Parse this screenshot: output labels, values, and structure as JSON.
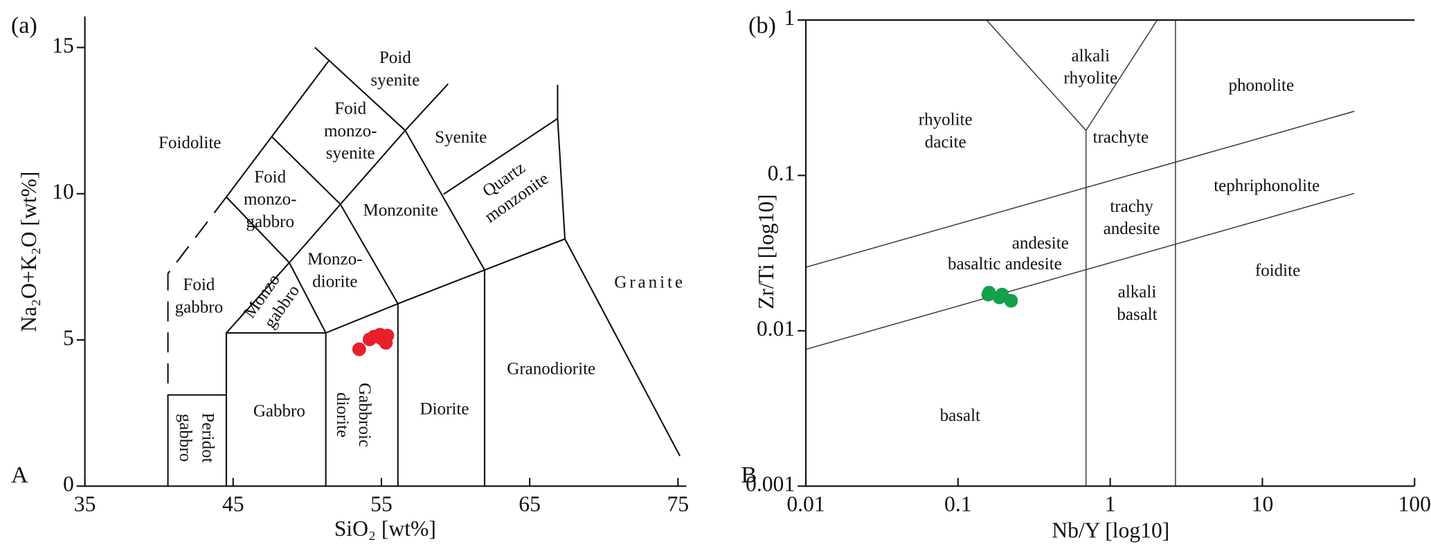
{
  "chart_data": [
    {
      "type": "scatter",
      "panel_label": "(a)",
      "corner_label": "A",
      "x_label": "SiO₂ [wt%]",
      "y_label": "Na₂O+K₂O [wt%]",
      "xlim": [
        35,
        75.5
      ],
      "ylim": [
        0,
        16
      ],
      "xticks": [
        35,
        45,
        55,
        65,
        75
      ],
      "yticks": [
        0,
        5,
        10,
        15
      ],
      "series": [
        {
          "color": "#e8202a",
          "x": [
            53.5,
            54.2,
            54.5,
            55.0,
            55.3,
            55.4,
            54.9
          ],
          "values": [
            4.68,
            5.02,
            5.11,
            5.05,
            4.9,
            5.15,
            5.18
          ]
        }
      ],
      "field_labels": [
        [
          "Foidolite"
        ],
        [
          "Poid",
          "syenite"
        ],
        [
          "Foid",
          "monzo-",
          "syenite"
        ],
        [
          "Syenite"
        ],
        [
          "Foid",
          "monzo-",
          "gabbro"
        ],
        [
          "Monzonite"
        ],
        [
          "Quartz",
          "monzonite"
        ],
        [
          "Foid",
          "gabbro"
        ],
        [
          "Monzo-",
          "gabbro"
        ],
        [
          "Monzo-",
          "diorite"
        ],
        [
          "Granite"
        ],
        [
          "Gabbro"
        ],
        [
          "Gabbroic",
          "diorite"
        ],
        [
          "Diorite"
        ],
        [
          "Granodiorite"
        ],
        [
          "Peridot",
          "gabbro"
        ]
      ]
    },
    {
      "type": "scatter",
      "panel_label": "(b)",
      "corner_label": "B",
      "x_label": "Nb/Y [log10]",
      "y_label": "Zr/Ti [log10]",
      "xscale": "log",
      "yscale": "log",
      "xlim": [
        0.01,
        100
      ],
      "ylim": [
        0.001,
        1
      ],
      "xticks": [
        0.01,
        0.1,
        1,
        10,
        100
      ],
      "yticks": [
        0.001,
        0.01,
        0.1,
        1
      ],
      "series": [
        {
          "color": "#14a04a",
          "x": [
            0.158,
            0.16,
            0.187,
            0.195,
            0.223
          ],
          "values": [
            0.0171,
            0.0176,
            0.0164,
            0.0171,
            0.0156
          ]
        }
      ],
      "field_labels": [
        [
          "alkali",
          "rhyolite"
        ],
        [
          "phonolite"
        ],
        [
          "rhyolite",
          "dacite"
        ],
        [
          "trachyte"
        ],
        [
          "tephriphonolite"
        ],
        [
          "trachy",
          "andesite"
        ],
        [
          "andesite"
        ],
        [
          "basaltic andesite"
        ],
        [
          "foidite"
        ],
        [
          "alkali",
          "basalt"
        ],
        [
          "basalt"
        ]
      ]
    }
  ]
}
